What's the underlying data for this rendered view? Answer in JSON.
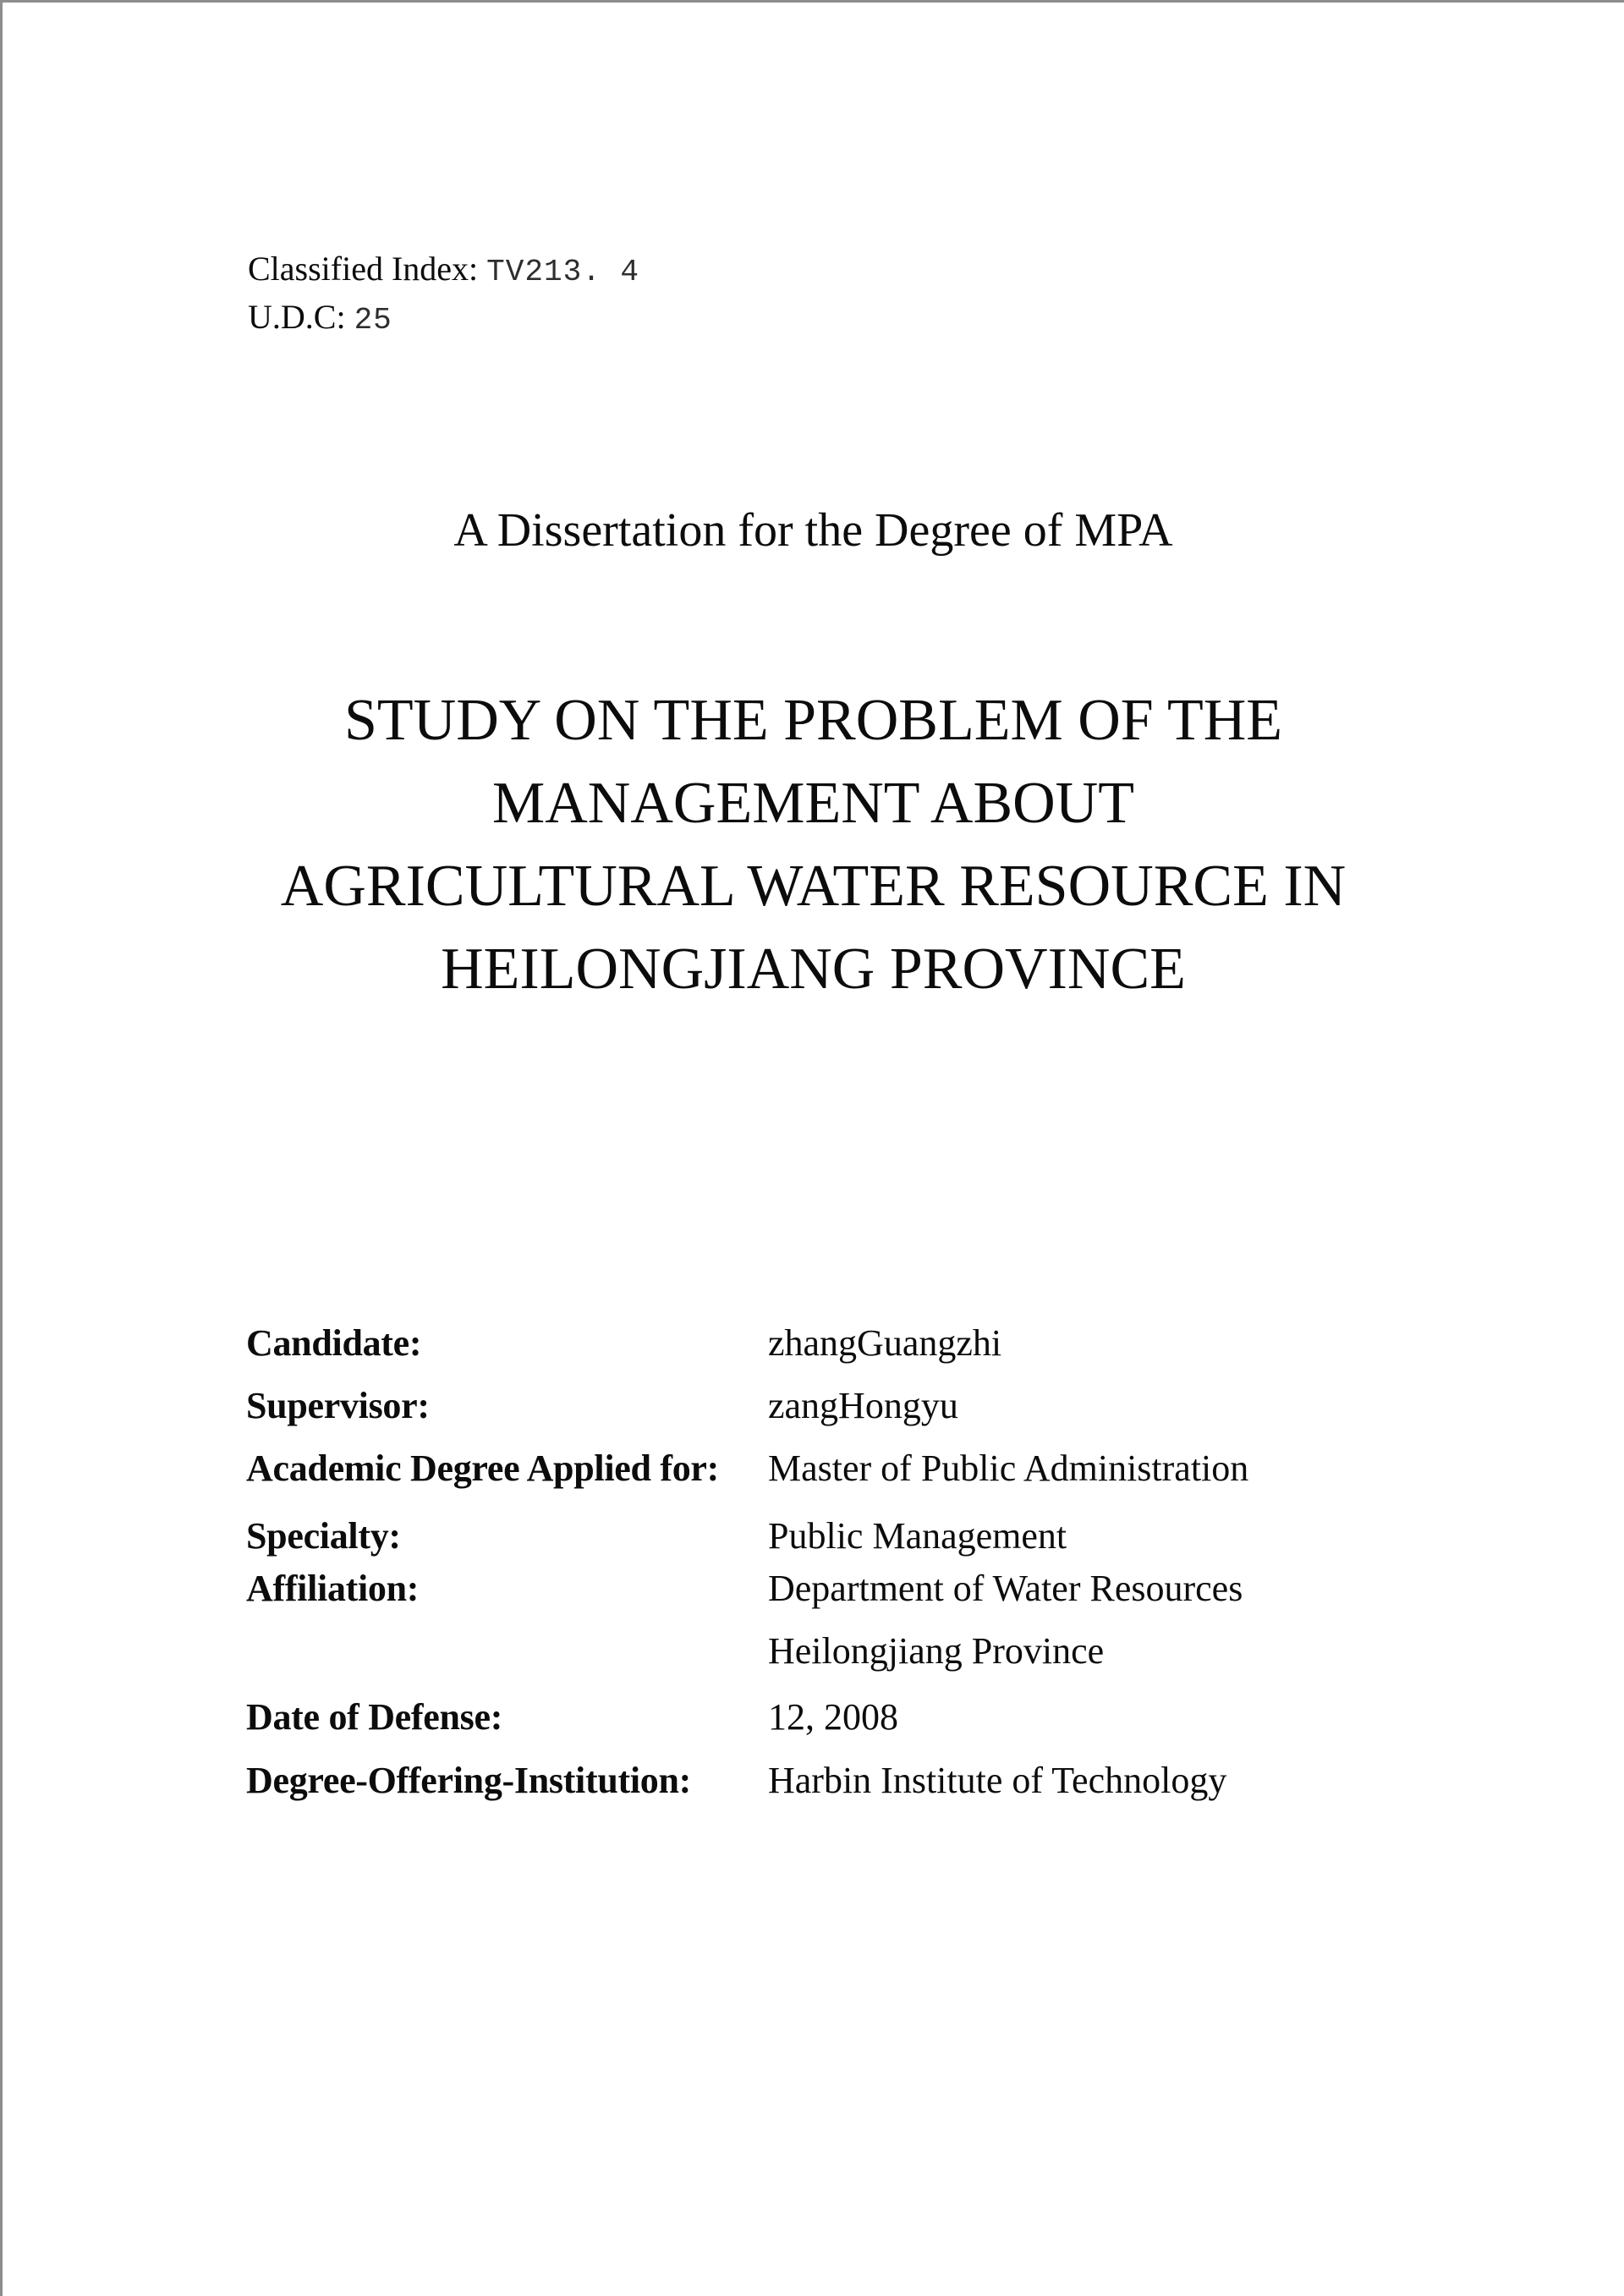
{
  "document": {
    "header": {
      "classified_index_label": "Classified Index:",
      "classified_index_value": "TV213. 4",
      "udc_label": "U.D.C:",
      "udc_value": "25"
    },
    "subtitle": "A Dissertation for the Degree of MPA",
    "title_lines": [
      "STUDY ON THE PROBLEM OF THE",
      "MANAGEMENT ABOUT",
      "AGRICULTURAL WATER RESOURCE IN",
      "HEILONGJIANG PROVINCE"
    ],
    "fields": [
      {
        "label": "Candidate:",
        "value": "zhangGuangzhi"
      },
      {
        "label": "Supervisor:",
        "value": "zangHongyu"
      },
      {
        "label": "Academic Degree Applied for:",
        "value": "Master of Public Administration"
      },
      {
        "label": "Specialty:",
        "value": "Public Management"
      },
      {
        "label": "Affiliation:",
        "value": "Department of Water Resources"
      },
      {
        "label": "",
        "value": "Heilongjiang Province"
      },
      {
        "label": "Date of Defense:",
        "value": "12, 2008"
      },
      {
        "label": "Degree-Offering-Institution:",
        "value": "Harbin Institute of Technology"
      }
    ],
    "colors": {
      "text": "#0c0c0c",
      "page_background": "#ffffff",
      "scan_edge": "#8d8d8d"
    }
  }
}
